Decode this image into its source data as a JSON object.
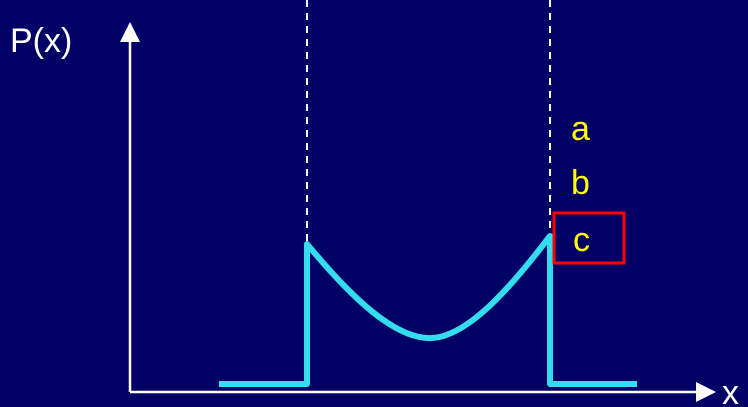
{
  "axes": {
    "y_label": "P(x)",
    "x_label": "x"
  },
  "options": {
    "a": "a",
    "b": "b",
    "c": "c"
  },
  "selected_option": "c",
  "colors": {
    "background": "#000066",
    "axis": "#ffffff",
    "curve": "#33ddee",
    "option_text": "#ffff00",
    "highlight_box": "#ff0000",
    "guide_line": "#ffffff"
  }
}
